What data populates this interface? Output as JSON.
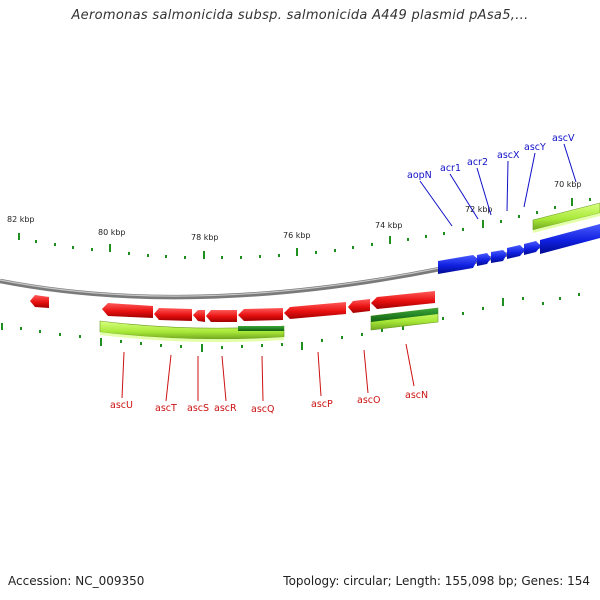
{
  "title": "Aeromonas salmonicida subsp. salmonicida A449 plasmid pAsa5,...",
  "footer": {
    "accession": "Accession: NC_009350",
    "summary": "Topology: circular; Length: 155,098 bp; Genes: 154"
  },
  "colors": {
    "forward_gene": "#1020e0",
    "reverse_gene": "#ee1111",
    "cds_light": "#b2ee44",
    "cds_dark": "#228822",
    "backbone": "#888888",
    "tick": "#1f8f1f",
    "label_forward": "#1010c8",
    "label_reverse": "#cc1111"
  },
  "scale": {
    "unit": "kbp",
    "labels": [
      "82 kbp",
      "80 kbp",
      "78 kbp",
      "76 kbp",
      "74 kbp",
      "72 kbp",
      "70 kbp"
    ]
  },
  "forward_genes": [
    "aopN",
    "acr1",
    "acr2",
    "ascX",
    "ascY",
    "ascV"
  ],
  "reverse_genes": [
    "ascU",
    "ascT",
    "ascS",
    "ascR",
    "ascQ",
    "ascP",
    "ascO",
    "ascN"
  ]
}
